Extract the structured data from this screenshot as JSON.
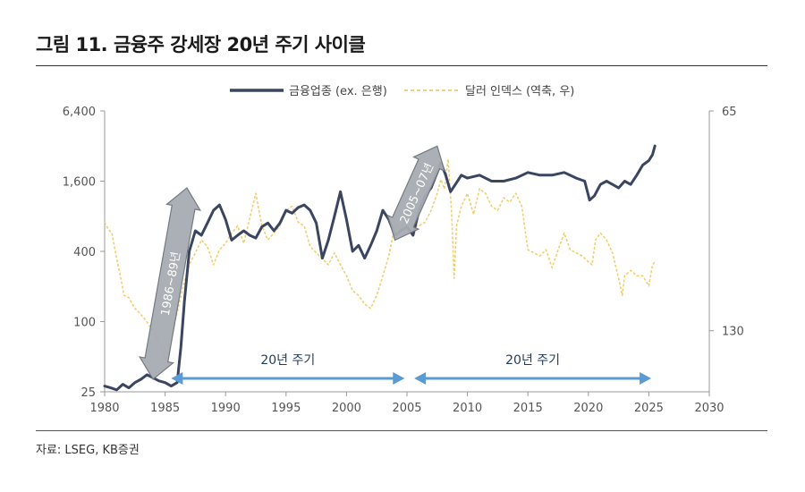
{
  "title": "그림 11. 금융주 강세장 20년 주기 사이클",
  "source": "자료: LSEG, KB증권",
  "chart_data": {
    "type": "line",
    "legend": [
      {
        "name": "금융업종 (ex. 은행)",
        "color": "#3a4560",
        "style": "solid"
      },
      {
        "name": "달러 인덱스 (역축, 우)",
        "color": "#f2d37c",
        "style": "dashed"
      }
    ],
    "legend_position": "top-center",
    "x_ticks": [
      1980,
      1985,
      1990,
      1995,
      2000,
      2005,
      2010,
      2015,
      2020,
      2025,
      2030
    ],
    "xlim": [
      1980,
      2030
    ],
    "left_axis": {
      "scale": "log",
      "ticks": [
        "6,400",
        "1,600",
        "400",
        "100",
        "25"
      ],
      "tick_values": [
        6400,
        1600,
        400,
        100,
        25
      ],
      "ylim": [
        25,
        6400
      ]
    },
    "right_axis": {
      "scale": "reciprocal (inverted)",
      "ticks": [
        "65",
        "130"
      ],
      "tick_values": [
        65,
        130
      ],
      "ylim": [
        65,
        180
      ]
    },
    "grid": false,
    "series": [
      {
        "name": "금융업종 (ex. 은행)",
        "axis": "left",
        "points": [
          [
            1980.0,
            28
          ],
          [
            1980.5,
            27
          ],
          [
            1981.0,
            26
          ],
          [
            1981.5,
            29
          ],
          [
            1982.0,
            27
          ],
          [
            1982.5,
            30
          ],
          [
            1983.0,
            32
          ],
          [
            1983.5,
            35
          ],
          [
            1984.0,
            33
          ],
          [
            1984.5,
            31
          ],
          [
            1985.0,
            30
          ],
          [
            1985.5,
            28
          ],
          [
            1986.0,
            30
          ],
          [
            1986.3,
            60
          ],
          [
            1986.6,
            150
          ],
          [
            1987.0,
            400
          ],
          [
            1987.5,
            600
          ],
          [
            1988.0,
            550
          ],
          [
            1988.5,
            700
          ],
          [
            1989.0,
            900
          ],
          [
            1989.5,
            1000
          ],
          [
            1990.0,
            750
          ],
          [
            1990.5,
            500
          ],
          [
            1991.0,
            550
          ],
          [
            1991.5,
            600
          ],
          [
            1992.0,
            550
          ],
          [
            1992.5,
            520
          ],
          [
            1993.0,
            650
          ],
          [
            1993.5,
            700
          ],
          [
            1994.0,
            600
          ],
          [
            1994.5,
            700
          ],
          [
            1995.0,
            900
          ],
          [
            1995.5,
            850
          ],
          [
            1996.0,
            950
          ],
          [
            1996.5,
            1000
          ],
          [
            1997.0,
            900
          ],
          [
            1997.5,
            700
          ],
          [
            1998.0,
            350
          ],
          [
            1998.5,
            500
          ],
          [
            1999.0,
            800
          ],
          [
            1999.5,
            1300
          ],
          [
            2000.0,
            750
          ],
          [
            2000.5,
            400
          ],
          [
            2001.0,
            450
          ],
          [
            2001.5,
            350
          ],
          [
            2002.0,
            450
          ],
          [
            2002.5,
            600
          ],
          [
            2003.0,
            900
          ],
          [
            2003.5,
            750
          ],
          [
            2004.0,
            550
          ],
          [
            2004.5,
            600
          ],
          [
            2005.0,
            650
          ],
          [
            2005.5,
            550
          ],
          [
            2006.0,
            900
          ],
          [
            2006.5,
            1200
          ],
          [
            2007.0,
            1400
          ],
          [
            2007.5,
            1900
          ],
          [
            2007.8,
            2300
          ],
          [
            2008.2,
            1800
          ],
          [
            2008.6,
            1300
          ],
          [
            2009.0,
            1500
          ],
          [
            2009.5,
            1800
          ],
          [
            2010.0,
            1700
          ],
          [
            2011.0,
            1800
          ],
          [
            2012.0,
            1600
          ],
          [
            2013.0,
            1600
          ],
          [
            2014.0,
            1700
          ],
          [
            2015.0,
            1900
          ],
          [
            2016.0,
            1800
          ],
          [
            2017.0,
            1800
          ],
          [
            2018.0,
            1900
          ],
          [
            2019.0,
            1700
          ],
          [
            2019.7,
            1600
          ],
          [
            2020.1,
            1100
          ],
          [
            2020.5,
            1200
          ],
          [
            2021.0,
            1500
          ],
          [
            2021.5,
            1600
          ],
          [
            2022.0,
            1500
          ],
          [
            2022.5,
            1400
          ],
          [
            2023.0,
            1600
          ],
          [
            2023.5,
            1500
          ],
          [
            2024.0,
            1800
          ],
          [
            2024.5,
            2200
          ],
          [
            2025.0,
            2400
          ],
          [
            2025.3,
            2700
          ],
          [
            2025.5,
            3200
          ]
        ]
      },
      {
        "name": "달러 인덱스 (역축, 우)",
        "axis": "right",
        "points": [
          [
            1980.0,
            87
          ],
          [
            1980.3,
            89
          ],
          [
            1980.6,
            90
          ],
          [
            1981.0,
            98
          ],
          [
            1981.3,
            104
          ],
          [
            1981.6,
            112
          ],
          [
            1982.0,
            113
          ],
          [
            1982.5,
            118
          ],
          [
            1983.0,
            121
          ],
          [
            1983.5,
            125
          ],
          [
            1984.0,
            130
          ],
          [
            1984.3,
            134
          ],
          [
            1984.6,
            140
          ],
          [
            1985.0,
            150
          ],
          [
            1985.3,
            145
          ],
          [
            1985.6,
            130
          ],
          [
            1986.0,
            120
          ],
          [
            1986.5,
            108
          ],
          [
            1987.0,
            100
          ],
          [
            1987.5,
            96
          ],
          [
            1988.0,
            92
          ],
          [
            1988.5,
            94
          ],
          [
            1989.0,
            100
          ],
          [
            1989.5,
            95
          ],
          [
            1990.0,
            93
          ],
          [
            1990.5,
            90
          ],
          [
            1991.0,
            88
          ],
          [
            1991.5,
            93
          ],
          [
            1992.0,
            86
          ],
          [
            1992.5,
            80
          ],
          [
            1993.0,
            88
          ],
          [
            1993.5,
            92
          ],
          [
            1994.0,
            90
          ],
          [
            1994.5,
            88
          ],
          [
            1995.0,
            84
          ],
          [
            1995.5,
            83
          ],
          [
            1996.0,
            87
          ],
          [
            1996.5,
            88
          ],
          [
            1997.0,
            94
          ],
          [
            1997.5,
            96
          ],
          [
            1998.0,
            98
          ],
          [
            1998.5,
            100
          ],
          [
            1999.0,
            96
          ],
          [
            1999.5,
            100
          ],
          [
            2000.0,
            104
          ],
          [
            2000.5,
            110
          ],
          [
            2001.0,
            112
          ],
          [
            2001.5,
            116
          ],
          [
            2002.0,
            118
          ],
          [
            2002.5,
            112
          ],
          [
            2003.0,
            104
          ],
          [
            2003.5,
            97
          ],
          [
            2004.0,
            88
          ],
          [
            2004.5,
            89
          ],
          [
            2005.0,
            84
          ],
          [
            2005.5,
            88
          ],
          [
            2006.0,
            88
          ],
          [
            2006.5,
            87
          ],
          [
            2007.0,
            84
          ],
          [
            2007.5,
            80
          ],
          [
            2007.8,
            77
          ],
          [
            2008.1,
            79
          ],
          [
            2008.4,
            73
          ],
          [
            2008.7,
            85
          ],
          [
            2008.9,
            105
          ],
          [
            2009.1,
            88
          ],
          [
            2009.5,
            83
          ],
          [
            2010.0,
            80
          ],
          [
            2010.5,
            85
          ],
          [
            2011.0,
            79
          ],
          [
            2011.5,
            80
          ],
          [
            2012.0,
            83
          ],
          [
            2012.5,
            84
          ],
          [
            2013.0,
            81
          ],
          [
            2013.5,
            82
          ],
          [
            2014.0,
            80
          ],
          [
            2014.5,
            83
          ],
          [
            2015.0,
            95
          ],
          [
            2015.5,
            96
          ],
          [
            2016.0,
            97
          ],
          [
            2016.5,
            95
          ],
          [
            2017.0,
            101
          ],
          [
            2017.5,
            95
          ],
          [
            2018.0,
            90
          ],
          [
            2018.5,
            95
          ],
          [
            2019.0,
            96
          ],
          [
            2019.5,
            97
          ],
          [
            2020.0,
            99
          ],
          [
            2020.3,
            100
          ],
          [
            2020.6,
            92
          ],
          [
            2021.0,
            90
          ],
          [
            2021.5,
            92
          ],
          [
            2022.0,
            96
          ],
          [
            2022.5,
            105
          ],
          [
            2022.8,
            112
          ],
          [
            2023.0,
            104
          ],
          [
            2023.5,
            102
          ],
          [
            2024.0,
            104
          ],
          [
            2024.5,
            104
          ],
          [
            2025.0,
            108
          ],
          [
            2025.3,
            100
          ],
          [
            2025.5,
            99
          ]
        ]
      }
    ],
    "annotations": [
      {
        "type": "diagonal-arrow",
        "label": "1986~89년",
        "from": [
          1984.0,
          32
        ],
        "to": [
          1986.8,
          1400
        ]
      },
      {
        "type": "diagonal-arrow",
        "label": "2005~07년",
        "from": [
          2004.0,
          500
        ],
        "to": [
          2007.5,
          3200
        ]
      },
      {
        "type": "horizontal-arrow",
        "label": "20년 주기",
        "from": 1985.5,
        "to": 2004.8
      },
      {
        "type": "horizontal-arrow",
        "label": "20년 주기",
        "from": 2005.6,
        "to": 2025.2
      }
    ]
  }
}
